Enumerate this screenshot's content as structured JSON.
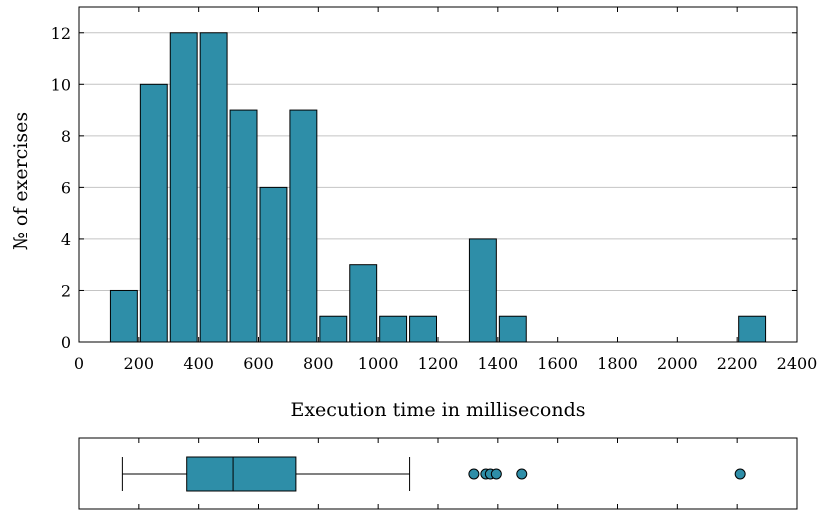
{
  "chart_data": [
    {
      "type": "bar",
      "title": "",
      "xlabel": "Execution time in milliseconds",
      "ylabel": "№ of exercises",
      "xlim": [
        0,
        2400
      ],
      "ylim": [
        0,
        13
      ],
      "bin_width": 100,
      "grid": "horizontal",
      "color": "#2e8ea8",
      "x_ticks": [
        0,
        200,
        400,
        600,
        800,
        1000,
        1200,
        1400,
        1600,
        1800,
        2000,
        2200,
        2400
      ],
      "y_ticks": [
        0,
        2,
        4,
        6,
        8,
        10,
        12
      ],
      "bins": [
        {
          "from": 100,
          "to": 200,
          "count": 2
        },
        {
          "from": 200,
          "to": 300,
          "count": 10
        },
        {
          "from": 300,
          "to": 400,
          "count": 12
        },
        {
          "from": 400,
          "to": 500,
          "count": 12
        },
        {
          "from": 500,
          "to": 600,
          "count": 9
        },
        {
          "from": 600,
          "to": 700,
          "count": 6
        },
        {
          "from": 700,
          "to": 800,
          "count": 9
        },
        {
          "from": 800,
          "to": 900,
          "count": 1
        },
        {
          "from": 900,
          "to": 1000,
          "count": 3
        },
        {
          "from": 1000,
          "to": 1100,
          "count": 1
        },
        {
          "from": 1100,
          "to": 1200,
          "count": 1
        },
        {
          "from": 1300,
          "to": 1400,
          "count": 4
        },
        {
          "from": 1400,
          "to": 1500,
          "count": 1
        },
        {
          "from": 2200,
          "to": 2300,
          "count": 1
        }
      ]
    },
    {
      "type": "boxplot",
      "xlim": [
        0,
        2400
      ],
      "color": "#2e8ea8",
      "whisker_low": 145,
      "q1": 360,
      "median": 515,
      "q3": 725,
      "whisker_high": 1105,
      "outliers": [
        1320,
        1360,
        1375,
        1395,
        1480,
        2210
      ]
    }
  ]
}
